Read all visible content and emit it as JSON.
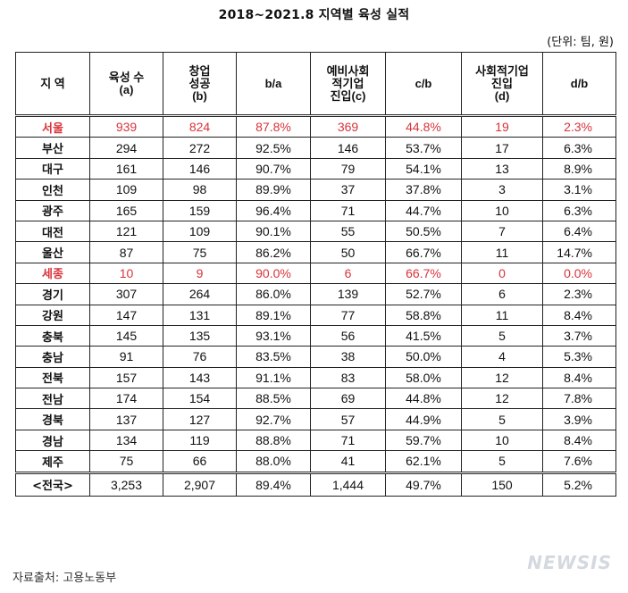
{
  "title": "2018~2021.8 지역별 육성 실적",
  "unit_note": "(단위: 팀, 원)",
  "headers": [
    [
      "지 역"
    ],
    [
      "육성 수",
      "(a)"
    ],
    [
      "창업",
      "성공",
      "(b)"
    ],
    [
      "b/a"
    ],
    [
      "예비사회",
      "적기업",
      "진입(c)"
    ],
    [
      "c/b"
    ],
    [
      "사회적기업",
      "진입",
      "(d)"
    ],
    [
      "d/b"
    ]
  ],
  "rows": [
    {
      "region": "서울",
      "a": "939",
      "b": "824",
      "ba": "87.8%",
      "c": "369",
      "cb": "44.8%",
      "d": "19",
      "db": "2.3%",
      "highlight": true
    },
    {
      "region": "부산",
      "a": "294",
      "b": "272",
      "ba": "92.5%",
      "c": "146",
      "cb": "53.7%",
      "d": "17",
      "db": "6.3%"
    },
    {
      "region": "대구",
      "a": "161",
      "b": "146",
      "ba": "90.7%",
      "c": "79",
      "cb": "54.1%",
      "d": "13",
      "db": "8.9%"
    },
    {
      "region": "인천",
      "a": "109",
      "b": "98",
      "ba": "89.9%",
      "c": "37",
      "cb": "37.8%",
      "d": "3",
      "db": "3.1%"
    },
    {
      "region": "광주",
      "a": "165",
      "b": "159",
      "ba": "96.4%",
      "c": "71",
      "cb": "44.7%",
      "d": "10",
      "db": "6.3%"
    },
    {
      "region": "대전",
      "a": "121",
      "b": "109",
      "ba": "90.1%",
      "c": "55",
      "cb": "50.5%",
      "d": "7",
      "db": "6.4%"
    },
    {
      "region": "울산",
      "a": "87",
      "b": "75",
      "ba": "86.2%",
      "c": "50",
      "cb": "66.7%",
      "d": "11",
      "db": "14.7%"
    },
    {
      "region": "세종",
      "a": "10",
      "b": "9",
      "ba": "90.0%",
      "c": "6",
      "cb": "66.7%",
      "d": "0",
      "db": "0.0%",
      "highlight": true
    },
    {
      "region": "경기",
      "a": "307",
      "b": "264",
      "ba": "86.0%",
      "c": "139",
      "cb": "52.7%",
      "d": "6",
      "db": "2.3%"
    },
    {
      "region": "강원",
      "a": "147",
      "b": "131",
      "ba": "89.1%",
      "c": "77",
      "cb": "58.8%",
      "d": "11",
      "db": "8.4%"
    },
    {
      "region": "충북",
      "a": "145",
      "b": "135",
      "ba": "93.1%",
      "c": "56",
      "cb": "41.5%",
      "d": "5",
      "db": "3.7%"
    },
    {
      "region": "충남",
      "a": "91",
      "b": "76",
      "ba": "83.5%",
      "c": "38",
      "cb": "50.0%",
      "d": "4",
      "db": "5.3%"
    },
    {
      "region": "전북",
      "a": "157",
      "b": "143",
      "ba": "91.1%",
      "c": "83",
      "cb": "58.0%",
      "d": "12",
      "db": "8.4%"
    },
    {
      "region": "전남",
      "a": "174",
      "b": "154",
      "ba": "88.5%",
      "c": "69",
      "cb": "44.8%",
      "d": "12",
      "db": "7.8%"
    },
    {
      "region": "경북",
      "a": "137",
      "b": "127",
      "ba": "92.7%",
      "c": "57",
      "cb": "44.9%",
      "d": "5",
      "db": "3.9%"
    },
    {
      "region": "경남",
      "a": "134",
      "b": "119",
      "ba": "88.8%",
      "c": "71",
      "cb": "59.7%",
      "d": "10",
      "db": "8.4%"
    },
    {
      "region": "제주",
      "a": "75",
      "b": "66",
      "ba": "88.0%",
      "c": "41",
      "cb": "62.1%",
      "d": "5",
      "db": "7.6%"
    }
  ],
  "total": {
    "region": "<전국>",
    "a": "3,253",
    "b": "2,907",
    "ba": "89.4%",
    "c": "1,444",
    "cb": "49.7%",
    "d": "150",
    "db": "5.2%"
  },
  "footer": "자료출처: 고용노동부",
  "watermark": "NEWSIS",
  "colors": {
    "highlight_text": "#d8333a",
    "border": "#222222"
  }
}
